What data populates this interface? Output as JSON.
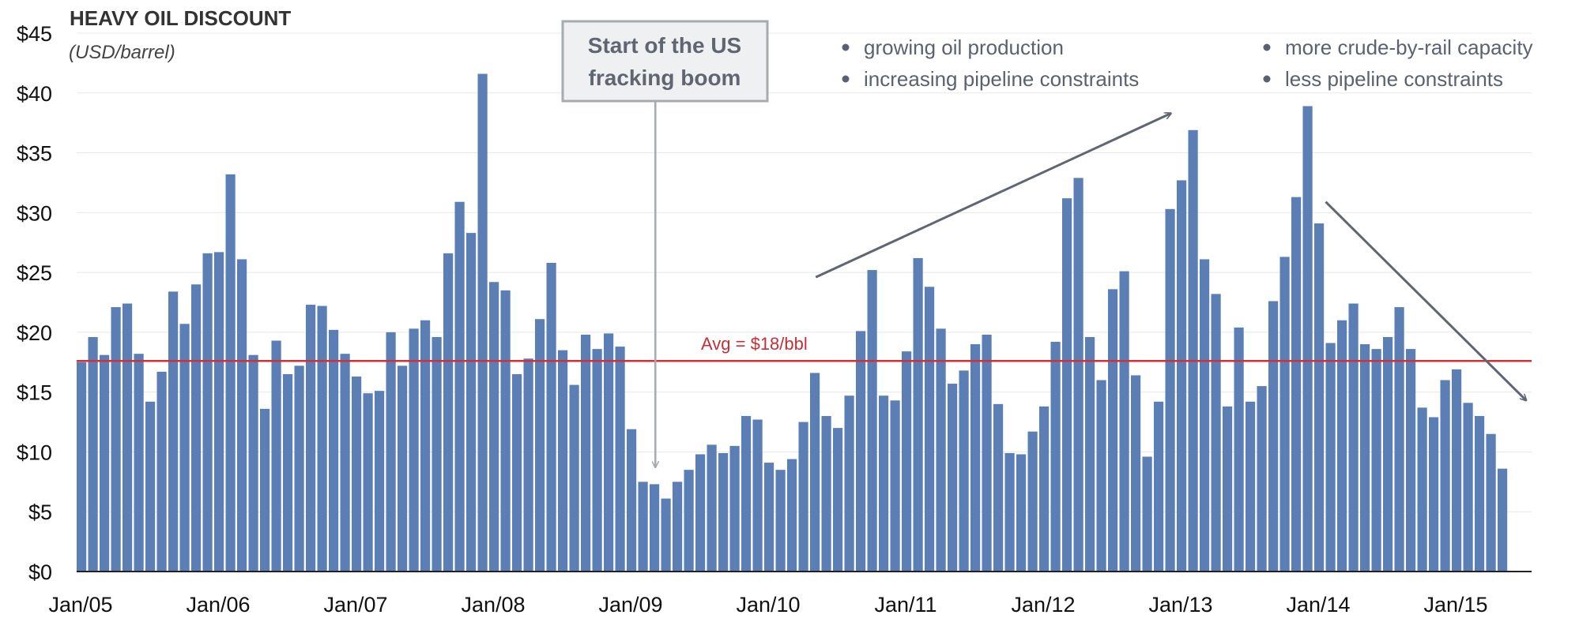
{
  "chart_data": {
    "type": "bar",
    "title": "HEAVY OIL DISCOUNT",
    "subtitle": "(USD/barrel)",
    "xlabel": "",
    "ylabel": "USD/barrel",
    "ylim": [
      0,
      45
    ],
    "yticks": [
      {
        "value": 0,
        "label": "$0"
      },
      {
        "value": 5,
        "label": "$5"
      },
      {
        "value": 10,
        "label": "$10"
      },
      {
        "value": 15,
        "label": "$15"
      },
      {
        "value": 20,
        "label": "$20"
      },
      {
        "value": 25,
        "label": "$25"
      },
      {
        "value": 30,
        "label": "$30"
      },
      {
        "value": 35,
        "label": "$35"
      },
      {
        "value": 40,
        "label": "$40"
      },
      {
        "value": 45,
        "label": "$45"
      }
    ],
    "xticks": [
      {
        "index": 0,
        "label": "Jan/05"
      },
      {
        "index": 12,
        "label": "Jan/06"
      },
      {
        "index": 24,
        "label": "Jan/07"
      },
      {
        "index": 36,
        "label": "Jan/08"
      },
      {
        "index": 48,
        "label": "Jan/09"
      },
      {
        "index": 60,
        "label": "Jan/10"
      },
      {
        "index": 72,
        "label": "Jan/11"
      },
      {
        "index": 84,
        "label": "Jan/12"
      },
      {
        "index": 96,
        "label": "Jan/13"
      },
      {
        "index": 108,
        "label": "Jan/14"
      },
      {
        "index": 120,
        "label": "Jan/15"
      }
    ],
    "grid": true,
    "series": [
      {
        "name": "Heavy oil discount",
        "color": "#5b7fb4",
        "values": [
          17.5,
          19.6,
          18.1,
          22.1,
          22.4,
          18.2,
          14.2,
          16.7,
          23.4,
          20.7,
          24.0,
          26.6,
          26.7,
          33.2,
          26.1,
          18.1,
          13.6,
          19.3,
          16.5,
          17.2,
          22.3,
          22.2,
          20.2,
          18.2,
          16.3,
          14.9,
          15.1,
          20.0,
          17.2,
          20.3,
          21.0,
          19.6,
          26.6,
          30.9,
          28.3,
          41.6,
          24.2,
          23.5,
          16.5,
          17.8,
          21.1,
          25.8,
          18.5,
          15.6,
          19.8,
          18.6,
          19.9,
          18.8,
          11.9,
          7.5,
          7.3,
          6.1,
          7.5,
          8.5,
          9.8,
          10.6,
          9.9,
          10.5,
          13.0,
          12.7,
          9.1,
          8.5,
          9.4,
          12.5,
          16.6,
          13.0,
          12.0,
          14.7,
          20.1,
          25.2,
          14.7,
          14.3,
          18.4,
          26.2,
          23.8,
          20.3,
          15.7,
          16.8,
          19.0,
          19.8,
          14.0,
          9.9,
          9.8,
          11.7,
          13.8,
          19.2,
          31.2,
          32.9,
          19.6,
          16.0,
          23.6,
          25.1,
          16.4,
          9.6,
          14.2,
          30.3,
          32.7,
          36.9,
          26.1,
          23.2,
          13.8,
          20.4,
          14.2,
          15.5,
          22.6,
          26.3,
          31.3,
          38.9,
          29.1,
          19.1,
          21.0,
          22.4,
          19.0,
          18.6,
          19.6,
          22.1,
          18.6,
          13.7,
          12.9,
          16.0,
          16.9,
          14.1,
          13.0,
          11.5,
          8.6
        ]
      }
    ],
    "reference_lines": [
      {
        "value": 17.6,
        "label": "Avg = $18/bbl",
        "color": "#d03038"
      }
    ],
    "annotations": {
      "callout": {
        "lines": [
          "Start of the US",
          "fracking boom"
        ],
        "points_to_index": 50
      },
      "legend_left": [
        "growing oil production",
        "increasing pipeline constraints"
      ],
      "legend_right": [
        "more crude-by-rail capacity",
        "less pipeline constraints"
      ],
      "bullet_color": "#5a6170",
      "trend_up": {
        "from": {
          "index": 64,
          "value": 24.6
        },
        "to": {
          "index": 95,
          "value": 38.3
        }
      },
      "trend_down": {
        "from": {
          "index": 108.5,
          "value": 30.9
        },
        "to": {
          "index": 126,
          "value": 14.3
        }
      }
    },
    "colors": {
      "bar": "#5b7fb4",
      "grid": "#e8e8e8",
      "axis": "#222222",
      "arrow": "#5f6672",
      "callout_box_fill": "#eef0f1",
      "callout_box_stroke": "#a6abb1",
      "callout_arrow": "#a6abb1"
    }
  }
}
